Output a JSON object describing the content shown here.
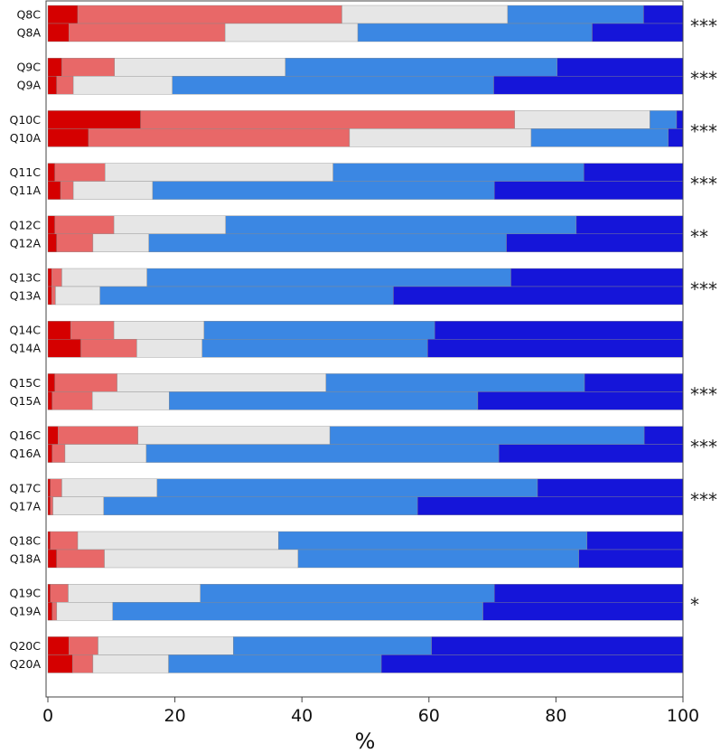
{
  "chart_data": {
    "type": "bar",
    "orientation": "horizontal",
    "stacked": true,
    "xlabel": "%",
    "xlim": [
      0,
      100
    ],
    "xticks": [
      0,
      20,
      40,
      60,
      80,
      100
    ],
    "series_colors": [
      "#d50000",
      "#e86868",
      "#e6e6e6",
      "#3b87e3",
      "#1515d9"
    ],
    "groups": [
      {
        "sig": "***",
        "rows": [
          {
            "label": "Q8C",
            "values": [
              4.7,
              41.6,
              26.1,
              21.4,
              6.2
            ]
          },
          {
            "label": "Q8A",
            "values": [
              3.3,
              24.6,
              20.9,
              36.9,
              14.3
            ]
          }
        ]
      },
      {
        "sig": "***",
        "rows": [
          {
            "label": "Q9C",
            "values": [
              2.2,
              8.3,
              26.9,
              42.8,
              19.8
            ]
          },
          {
            "label": "Q9A",
            "values": [
              1.4,
              2.6,
              15.6,
              50.6,
              29.8
            ]
          }
        ]
      },
      {
        "sig": "***",
        "rows": [
          {
            "label": "Q10C",
            "values": [
              14.6,
              58.9,
              21.3,
              4.2,
              1.0
            ]
          },
          {
            "label": "Q10A",
            "values": [
              6.4,
              41.1,
              28.6,
              21.6,
              2.3
            ]
          }
        ]
      },
      {
        "sig": "***",
        "rows": [
          {
            "label": "Q11C",
            "values": [
              1.1,
              7.9,
              35.9,
              39.5,
              15.6
            ]
          },
          {
            "label": "Q11A",
            "values": [
              2.0,
              2.0,
              12.5,
              53.8,
              29.7
            ]
          }
        ]
      },
      {
        "sig": "**",
        "rows": [
          {
            "label": "Q12C",
            "values": [
              1.1,
              9.3,
              17.6,
              55.2,
              16.8
            ]
          },
          {
            "label": "Q12A",
            "values": [
              1.4,
              5.7,
              8.8,
              56.3,
              27.8
            ]
          }
        ]
      },
      {
        "sig": "***",
        "rows": [
          {
            "label": "Q13C",
            "values": [
              0.6,
              1.6,
              13.4,
              57.3,
              27.1
            ]
          },
          {
            "label": "Q13A",
            "values": [
              0.6,
              0.6,
              7.0,
              46.2,
              45.6
            ]
          }
        ]
      },
      {
        "sig": "",
        "rows": [
          {
            "label": "Q14C",
            "values": [
              3.6,
              6.8,
              14.2,
              36.3,
              39.1
            ]
          },
          {
            "label": "Q14A",
            "values": [
              5.2,
              8.8,
              10.3,
              35.5,
              40.2
            ]
          }
        ]
      },
      {
        "sig": "***",
        "rows": [
          {
            "label": "Q15C",
            "values": [
              1.1,
              9.8,
              32.9,
              40.7,
              15.5
            ]
          },
          {
            "label": "Q15A",
            "values": [
              0.7,
              6.3,
              12.1,
              48.6,
              32.3
            ]
          }
        ]
      },
      {
        "sig": "***",
        "rows": [
          {
            "label": "Q16C",
            "values": [
              1.6,
              12.6,
              30.2,
              49.5,
              6.1
            ]
          },
          {
            "label": "Q16A",
            "values": [
              0.7,
              2.0,
              12.8,
              55.5,
              29.0
            ]
          }
        ]
      },
      {
        "sig": "***",
        "rows": [
          {
            "label": "Q17C",
            "values": [
              0.4,
              1.8,
              15.0,
              59.9,
              22.9
            ]
          },
          {
            "label": "Q17A",
            "values": [
              0.4,
              0.4,
              8.0,
              49.4,
              41.8
            ]
          }
        ]
      },
      {
        "sig": "",
        "rows": [
          {
            "label": "Q18C",
            "values": [
              0.4,
              4.3,
              31.6,
              48.6,
              15.1
            ]
          },
          {
            "label": "Q18A",
            "values": [
              1.4,
              7.5,
              30.5,
              44.2,
              16.4
            ]
          }
        ]
      },
      {
        "sig": "*",
        "rows": [
          {
            "label": "Q19C",
            "values": [
              0.4,
              2.8,
              20.8,
              46.3,
              29.7
            ]
          },
          {
            "label": "Q19A",
            "values": [
              0.7,
              0.7,
              8.8,
              58.3,
              31.5
            ]
          }
        ]
      },
      {
        "sig": "",
        "rows": [
          {
            "label": "Q20C",
            "values": [
              3.3,
              4.6,
              21.3,
              31.2,
              39.6
            ]
          },
          {
            "label": "Q20A",
            "values": [
              3.9,
              3.2,
              11.9,
              33.5,
              47.5
            ]
          }
        ]
      }
    ]
  }
}
